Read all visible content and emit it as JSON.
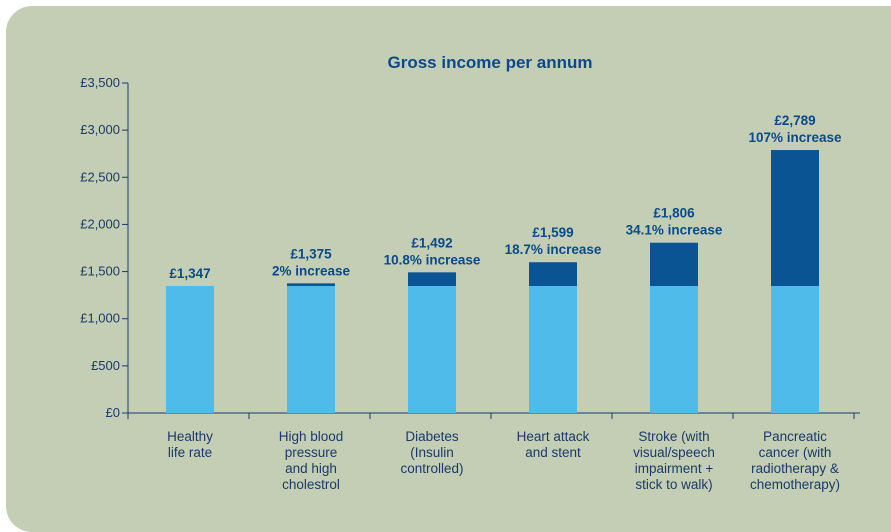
{
  "chart_data": {
    "type": "bar",
    "stacked": true,
    "title": "Gross income per annum",
    "xlabel": "",
    "ylabel": "",
    "ylim": [
      0,
      3500
    ],
    "yticks": [
      "£0",
      "£500",
      "£1,000",
      "£1,500",
      "£2,000",
      "£2,500",
      "£3,000",
      "£3,500"
    ],
    "grid": false,
    "categories": [
      [
        "Healthy",
        "life rate"
      ],
      [
        "High blood",
        "pressure",
        "and high",
        "cholestrol"
      ],
      [
        "Diabetes",
        "(Insulin",
        "controlled)"
      ],
      [
        "Heart attack",
        "and stent"
      ],
      [
        "Stroke (with",
        "visual/speech",
        "impairment +",
        "stick to walk)"
      ],
      [
        "Pancreatic",
        "cancer (with",
        "radiotherapy &",
        "chemotherapy)"
      ]
    ],
    "totals": [
      1347,
      1375,
      1492,
      1599,
      1806,
      2789
    ],
    "series": [
      {
        "values": [
          1347,
          1347,
          1347,
          1347,
          1347,
          1347
        ]
      },
      {
        "values": [
          0,
          28,
          145,
          252,
          459,
          1442
        ]
      }
    ],
    "data_labels": [
      [
        "£1,347"
      ],
      [
        "£1,375",
        "2% increase"
      ],
      [
        "£1,492",
        "10.8% increase"
      ],
      [
        "£1,599",
        "18.7% increase"
      ],
      [
        "£1,806",
        "34.1% increase"
      ],
      [
        "£2,789",
        "107% increase"
      ]
    ],
    "colors": {
      "base": "#4ebbea",
      "increase": "#0a5494",
      "text": "#0a4a8c",
      "axis": "#1a3a6b",
      "background": "#c3ceb4"
    }
  }
}
